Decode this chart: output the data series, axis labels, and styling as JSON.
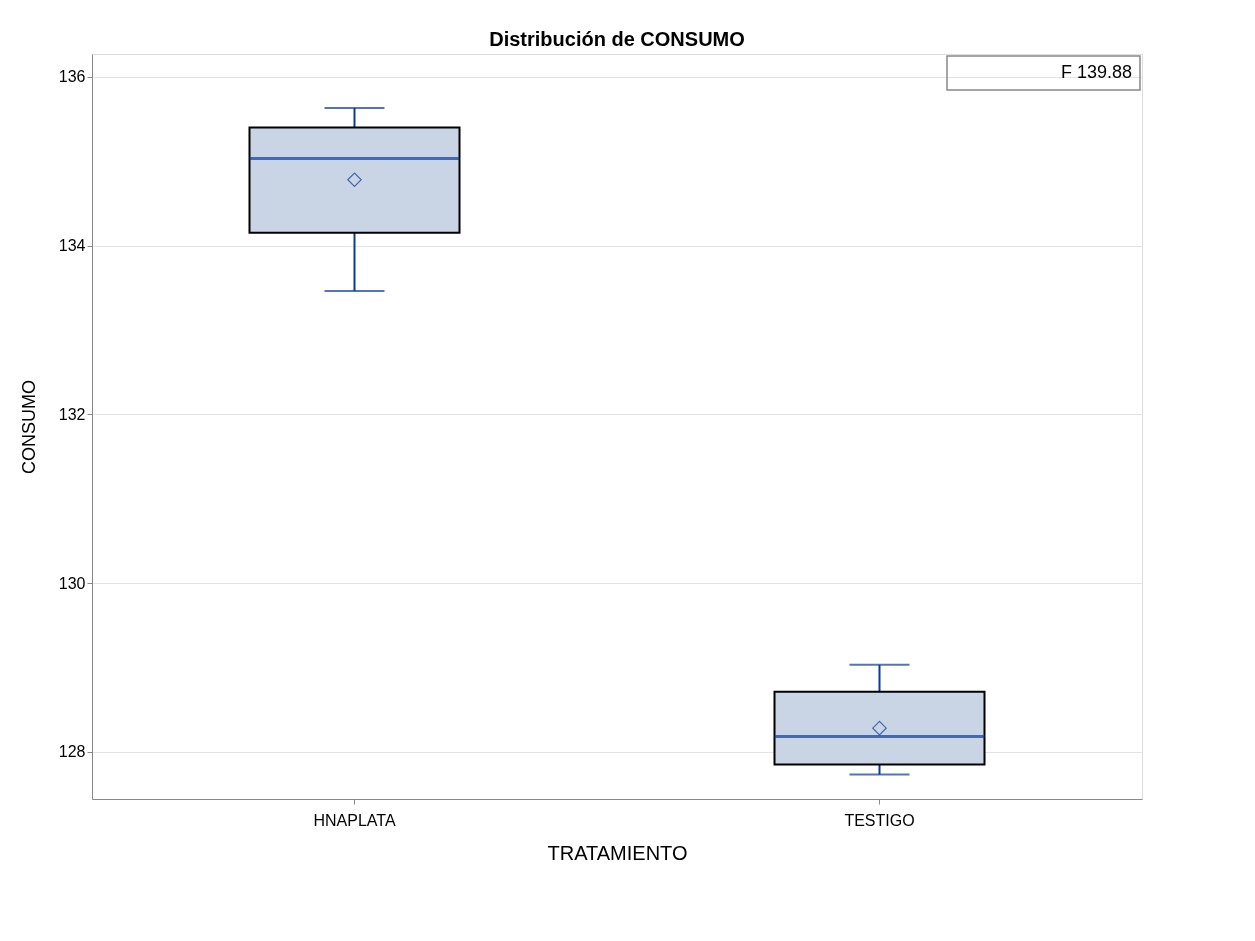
{
  "chart_data": {
    "type": "box",
    "title": "Distribución de CONSUMO",
    "xlabel": "TRATAMIENTO",
    "ylabel": "CONSUMO",
    "categories": [
      "HNAPLATA",
      "TESTIGO"
    ],
    "boxes": [
      {
        "low": 133.46,
        "q1": 134.15,
        "median": 135.03,
        "q3": 135.4,
        "high": 135.63,
        "mean": 134.78
      },
      {
        "low": 127.73,
        "q1": 127.85,
        "median": 128.18,
        "q3": 128.71,
        "high": 129.03,
        "mean": 128.28
      }
    ],
    "color": "#c9d5e5",
    "ylim": [
      127.44,
      136.27
    ],
    "yticks": [
      128,
      130,
      132,
      134,
      136
    ],
    "grid": "y",
    "annotations": [
      "F 139.88"
    ]
  }
}
